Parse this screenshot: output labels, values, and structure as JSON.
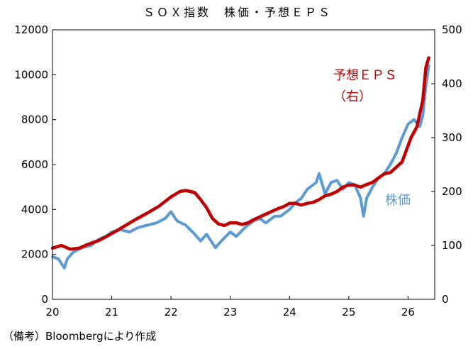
{
  "chart_data": {
    "type": "line",
    "title": "ＳＯＸ指数　株価・予想ＥＰＳ",
    "x_tick_labels": [
      "20",
      "21",
      "22",
      "23",
      "24",
      "25",
      "26"
    ],
    "xlim": [
      2020.0,
      2026.45
    ],
    "y_left": {
      "lim": [
        0,
        12000
      ],
      "ticks": [
        "0",
        "2000",
        "4000",
        "6000",
        "8000",
        "10000",
        "12000"
      ]
    },
    "y_right": {
      "lim": [
        0,
        500
      ],
      "ticks": [
        "0",
        "100",
        "200",
        "300",
        "400",
        "500"
      ]
    },
    "grid": false,
    "series": [
      {
        "name": "株価",
        "label": "株価",
        "axis": "left",
        "color": "#5b9bd5",
        "x": [
          2020.0,
          2020.1,
          2020.2,
          2020.25,
          2020.35,
          2020.5,
          2020.65,
          2020.8,
          2020.9,
          2021.0,
          2021.15,
          2021.3,
          2021.45,
          2021.6,
          2021.75,
          2021.9,
          2022.0,
          2022.1,
          2022.25,
          2022.4,
          2022.5,
          2022.6,
          2022.75,
          2022.85,
          2023.0,
          2023.1,
          2023.25,
          2023.4,
          2023.5,
          2023.6,
          2023.75,
          2023.85,
          2024.0,
          2024.1,
          2024.2,
          2024.3,
          2024.45,
          2024.5,
          2024.6,
          2024.7,
          2024.8,
          2024.9,
          2025.0,
          2025.1,
          2025.2,
          2025.25,
          2025.3,
          2025.4,
          2025.5,
          2025.6,
          2025.7,
          2025.8,
          2025.9,
          2026.0,
          2026.1,
          2026.2,
          2026.25,
          2026.3,
          2026.35
        ],
        "values": [
          1900,
          1800,
          1400,
          1800,
          2100,
          2300,
          2400,
          2700,
          2800,
          3000,
          3100,
          3000,
          3200,
          3300,
          3400,
          3600,
          3900,
          3500,
          3300,
          2900,
          2600,
          2900,
          2300,
          2600,
          3000,
          2800,
          3200,
          3500,
          3600,
          3400,
          3700,
          3700,
          4000,
          4300,
          4500,
          4900,
          5200,
          5600,
          4700,
          5200,
          5300,
          4900,
          5200,
          5100,
          4500,
          3700,
          4500,
          5000,
          5400,
          5600,
          6000,
          6500,
          7200,
          7800,
          8000,
          7700,
          8200,
          9500,
          10400
        ]
      },
      {
        "name": "予想ＥＰＳ",
        "label": "予想ＥＰＳ（右）",
        "label_line1": "予想ＥＰＳ",
        "label_line2": "（右）",
        "axis": "right",
        "color": "#c00000",
        "x": [
          2020.0,
          2020.15,
          2020.3,
          2020.45,
          2020.6,
          2020.8,
          2021.0,
          2021.2,
          2021.4,
          2021.6,
          2021.8,
          2022.0,
          2022.15,
          2022.25,
          2022.4,
          2022.5,
          2022.6,
          2022.7,
          2022.8,
          2022.9,
          2023.0,
          2023.1,
          2023.2,
          2023.3,
          2023.4,
          2023.5,
          2023.6,
          2023.7,
          2023.8,
          2023.9,
          2024.0,
          2024.1,
          2024.2,
          2024.3,
          2024.4,
          2024.5,
          2024.6,
          2024.7,
          2024.8,
          2024.9,
          2025.0,
          2025.1,
          2025.2,
          2025.3,
          2025.4,
          2025.5,
          2025.6,
          2025.7,
          2025.8,
          2025.9,
          2026.0,
          2026.05,
          2026.1,
          2026.15,
          2026.2,
          2026.25,
          2026.3,
          2026.35
        ],
        "values": [
          95,
          100,
          93,
          95,
          102,
          110,
          122,
          135,
          148,
          160,
          173,
          190,
          200,
          202,
          198,
          185,
          170,
          150,
          140,
          137,
          142,
          142,
          139,
          142,
          148,
          153,
          158,
          163,
          168,
          172,
          178,
          178,
          175,
          178,
          180,
          185,
          192,
          195,
          200,
          208,
          212,
          212,
          208,
          213,
          217,
          225,
          233,
          235,
          245,
          255,
          285,
          300,
          310,
          320,
          345,
          370,
          430,
          448
        ]
      }
    ]
  },
  "footnote": "（備考）Bloombergにより作成"
}
